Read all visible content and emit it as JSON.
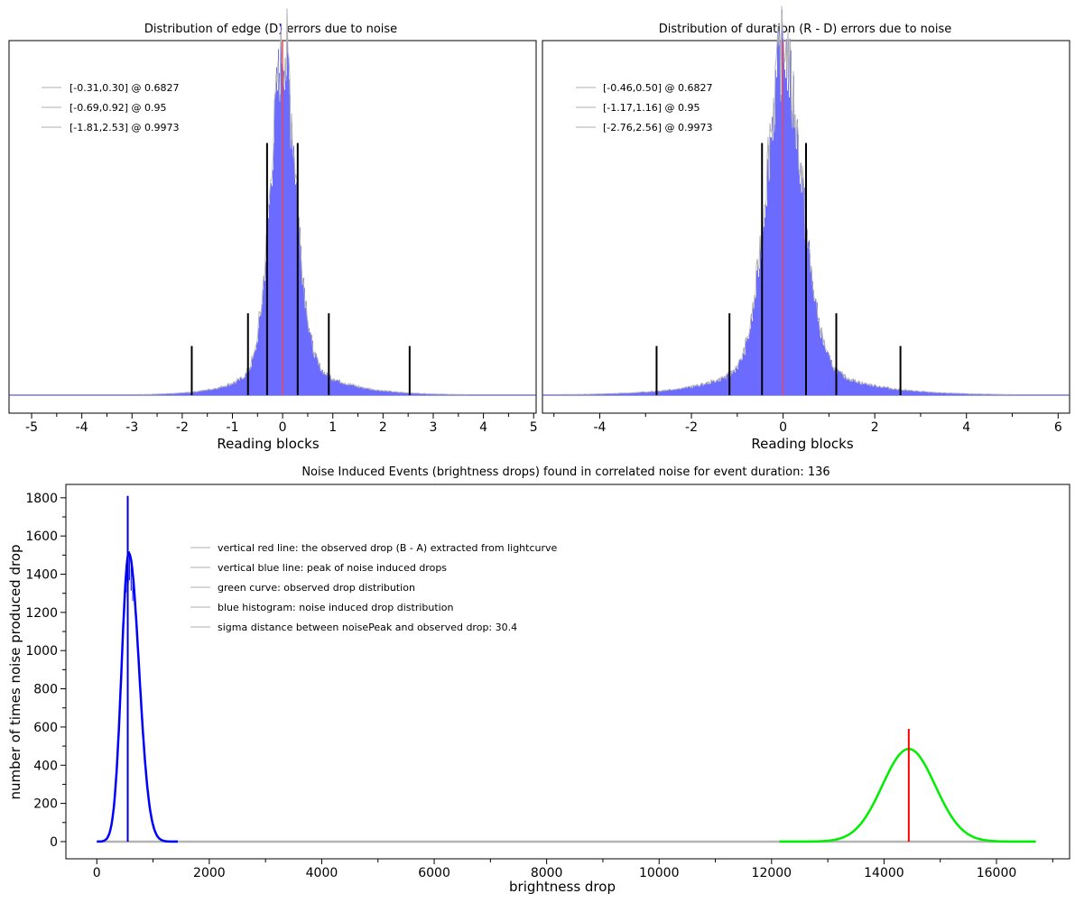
{
  "chart_data": [
    {
      "type": "histogram",
      "title": "Distribution of edge (D) errors due to noise",
      "xlabel": "Reading blocks",
      "ylabel": "",
      "xlim": [
        -5.45,
        5.05
      ],
      "xticks": [
        -5,
        -4,
        -3,
        -2,
        -1,
        0,
        1,
        2,
        3,
        4,
        5
      ],
      "grid": false,
      "legend_position": "top-left",
      "colors": {
        "histogram": "#6b6bff",
        "outline": "#b4b4b4",
        "zero_line": "#ff4040",
        "markers": "#000000",
        "baseline": "#3333cc"
      },
      "distribution": {
        "center": 0.0,
        "sigma_left": 0.24,
        "sigma_right": 0.26,
        "tail_left": 0.6,
        "tail_right": 0.75,
        "peak_relative": 1.0
      },
      "legend": [
        {
          "label": "[-0.31,0.30] @ 0.6827",
          "interval": [
            -0.31,
            0.3
          ],
          "confidence": 0.6827
        },
        {
          "label": "[-0.69,0.92] @ 0.95",
          "interval": [
            -0.69,
            0.92
          ],
          "confidence": 0.95
        },
        {
          "label": "[-1.81,2.53] @ 0.9973",
          "interval": [
            -1.81,
            2.53
          ],
          "confidence": 0.9973
        }
      ],
      "markers": [
        {
          "x": -0.31,
          "height": 0.77
        },
        {
          "x": 0.3,
          "height": 0.77
        },
        {
          "x": -0.69,
          "height": 0.25
        },
        {
          "x": 0.92,
          "height": 0.25
        },
        {
          "x": -1.81,
          "height": 0.15
        },
        {
          "x": 2.53,
          "height": 0.15
        }
      ]
    },
    {
      "type": "histogram",
      "title": "Distribution of duration (R - D) errors due to noise",
      "xlabel": "Reading blocks",
      "ylabel": "",
      "xlim": [
        -5.25,
        6.25
      ],
      "xticks": [
        -4,
        -2,
        0,
        2,
        4,
        6
      ],
      "grid": false,
      "legend_position": "top-left",
      "colors": {
        "histogram": "#6b6bff",
        "outline": "#b4b4b4",
        "zero_line": "#ff4040",
        "markers": "#000000",
        "baseline": "#3333cc"
      },
      "distribution": {
        "center": 0.0,
        "sigma_left": 0.36,
        "sigma_right": 0.4,
        "tail_left": 1.0,
        "tail_right": 1.05,
        "peak_relative": 1.0
      },
      "legend": [
        {
          "label": "[-0.46,0.50] @ 0.6827",
          "interval": [
            -0.46,
            0.5
          ],
          "confidence": 0.6827
        },
        {
          "label": "[-1.17,1.16] @ 0.95",
          "interval": [
            -1.17,
            1.16
          ],
          "confidence": 0.95
        },
        {
          "label": "[-2.76,2.56] @ 0.9973",
          "interval": [
            -2.76,
            2.56
          ],
          "confidence": 0.9973
        }
      ],
      "markers": [
        {
          "x": -0.46,
          "height": 0.77
        },
        {
          "x": 0.5,
          "height": 0.77
        },
        {
          "x": -1.17,
          "height": 0.25
        },
        {
          "x": 1.16,
          "height": 0.25
        },
        {
          "x": -2.76,
          "height": 0.15
        },
        {
          "x": 2.56,
          "height": 0.15
        }
      ]
    },
    {
      "type": "line",
      "title": "Noise Induced Events (brightness drops) found in correlated noise for event duration: 136",
      "xlabel": "brightness drop",
      "ylabel": "number of times noise produced drop",
      "xlim": [
        -550,
        17300
      ],
      "ylim": [
        -90,
        1870
      ],
      "xticks": [
        0,
        2000,
        4000,
        6000,
        8000,
        10000,
        12000,
        14000,
        16000
      ],
      "yticks": [
        0,
        200,
        400,
        600,
        800,
        1000,
        1200,
        1400,
        1600,
        1800
      ],
      "grid": false,
      "legend_position": "top-left",
      "legend": [
        "vertical red line: the observed drop (B - A) extracted from lightcurve",
        "vertical blue line: peak of noise induced drops",
        "green curve: observed drop distribution",
        "blue histogram: noise induced drop distribution",
        "sigma distance between noisePeak and observed drop: 30.4"
      ],
      "series": [
        {
          "name": "blue histogram: noise induced drop distribution",
          "color": "#0000ff",
          "peak_x": 570,
          "peak_y": 1510,
          "sigma_left": 130,
          "sigma_right": 180,
          "x_range": [
            0,
            1440
          ]
        },
        {
          "name": "green curve: observed drop distribution",
          "color": "#00ee00",
          "peak_x": 14440,
          "peak_y": 485,
          "sigma": 470,
          "x_range": [
            12140,
            16700
          ]
        }
      ],
      "baseline": {
        "color": "#b4b4b4",
        "x_range": [
          0,
          16700
        ],
        "y": 0
      },
      "vertical_lines": [
        {
          "name": "noise peak",
          "color": "#0000cc",
          "x": 550,
          "y_top": 1810
        },
        {
          "name": "observed drop",
          "color": "#ff0000",
          "x": 14440,
          "y_top": 590
        }
      ],
      "noise_spikes": [
        [
          520,
          1450
        ],
        [
          560,
          1500
        ],
        [
          580,
          1520
        ],
        [
          610,
          1460
        ],
        [
          640,
          1400
        ]
      ]
    }
  ]
}
